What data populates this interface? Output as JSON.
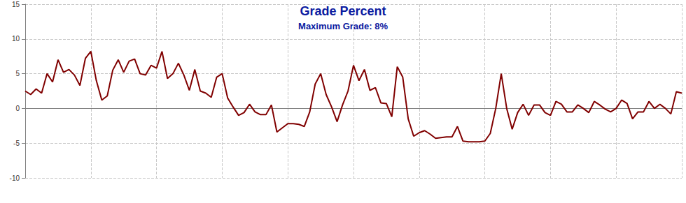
{
  "chart_data": {
    "type": "line",
    "title": "Grade Percent",
    "subtitle": "Maximum Grade: 8%",
    "values": [
      2.5,
      2,
      2.8,
      2.2,
      5,
      3.8,
      7,
      5.2,
      5.6,
      4.8,
      3.3,
      7.2,
      8.2,
      4,
      1.2,
      1.8,
      5.5,
      7,
      5.2,
      6.8,
      7.1,
      5,
      4.8,
      6.2,
      5.8,
      8.2,
      4.3,
      5,
      6.5,
      4.8,
      2.6,
      5.6,
      2.5,
      2.2,
      1.6,
      4.5,
      5,
      1.5,
      0.2,
      -1,
      -0.6,
      0.6,
      -0.5,
      -0.9,
      -0.9,
      0.5,
      -3.4,
      -2.8,
      -2.2,
      -2.2,
      -2.3,
      -2.6,
      -0.5,
      3.5,
      5,
      2,
      0.2,
      -1.9,
      0.5,
      2.5,
      6.2,
      4,
      5.6,
      2.6,
      3,
      0.8,
      0.7,
      -1.2,
      6,
      4.5,
      -1.5,
      -4,
      -3.5,
      -3.2,
      -3.7,
      -4.3,
      -4.2,
      -4.1,
      -4.1,
      -2.6,
      -4.7,
      -4.8,
      -4.8,
      -4.8,
      -4.7,
      -3.6,
      0,
      5,
      0,
      -3,
      -0.6,
      0.6,
      -1,
      0.5,
      0.5,
      -0.6,
      -1,
      1,
      0.6,
      -0.5,
      -0.5,
      0.5,
      0,
      -0.6,
      1,
      0.5,
      -0.1,
      -0.5,
      0,
      1.2,
      0.7,
      -1.5,
      -0.5,
      -0.5,
      1,
      0,
      0.6,
      0,
      -0.8,
      2.4,
      2.2
    ],
    "color": "#800000",
    "ylim": [
      -10,
      15
    ],
    "yticks": [
      -10,
      -5,
      0,
      5,
      10,
      15
    ],
    "grid": true,
    "tick_labels": "y"
  }
}
